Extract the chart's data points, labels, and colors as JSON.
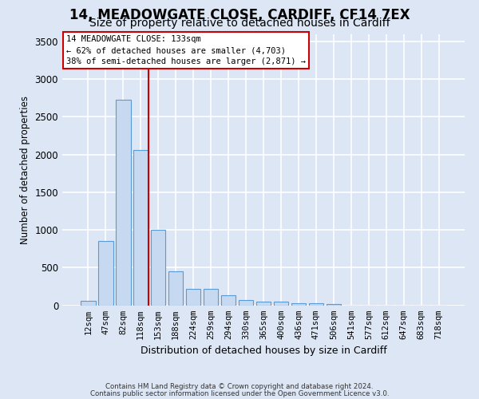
{
  "title1": "14, MEADOWGATE CLOSE, CARDIFF, CF14 7EX",
  "title2": "Size of property relative to detached houses in Cardiff",
  "xlabel": "Distribution of detached houses by size in Cardiff",
  "ylabel": "Number of detached properties",
  "bar_labels": [
    "12sqm",
    "47sqm",
    "82sqm",
    "118sqm",
    "153sqm",
    "188sqm",
    "224sqm",
    "259sqm",
    "294sqm",
    "330sqm",
    "365sqm",
    "400sqm",
    "436sqm",
    "471sqm",
    "506sqm",
    "541sqm",
    "577sqm",
    "612sqm",
    "647sqm",
    "683sqm",
    "718sqm"
  ],
  "bar_values": [
    60,
    850,
    2730,
    2060,
    1000,
    450,
    220,
    220,
    130,
    65,
    50,
    50,
    30,
    25,
    20,
    0,
    0,
    0,
    0,
    0,
    0
  ],
  "bar_color": "#c6d9f0",
  "bar_edge_color": "#5b9bd5",
  "vline_x": 3.45,
  "vline_color": "#cc0000",
  "ylim": [
    0,
    3600
  ],
  "yticks": [
    0,
    500,
    1000,
    1500,
    2000,
    2500,
    3000,
    3500
  ],
  "annotation_title": "14 MEADOWGATE CLOSE: 133sqm",
  "annotation_line1": "← 62% of detached houses are smaller (4,703)",
  "annotation_line2": "38% of semi-detached houses are larger (2,871) →",
  "annotation_box_color": "#cc0000",
  "footer1": "Contains HM Land Registry data © Crown copyright and database right 2024.",
  "footer2": "Contains public sector information licensed under the Open Government Licence v3.0.",
  "bg_color": "#dce6f4",
  "plot_bg_color": "#dce6f4",
  "grid_color": "#ffffff",
  "title1_fontsize": 12,
  "title2_fontsize": 10
}
